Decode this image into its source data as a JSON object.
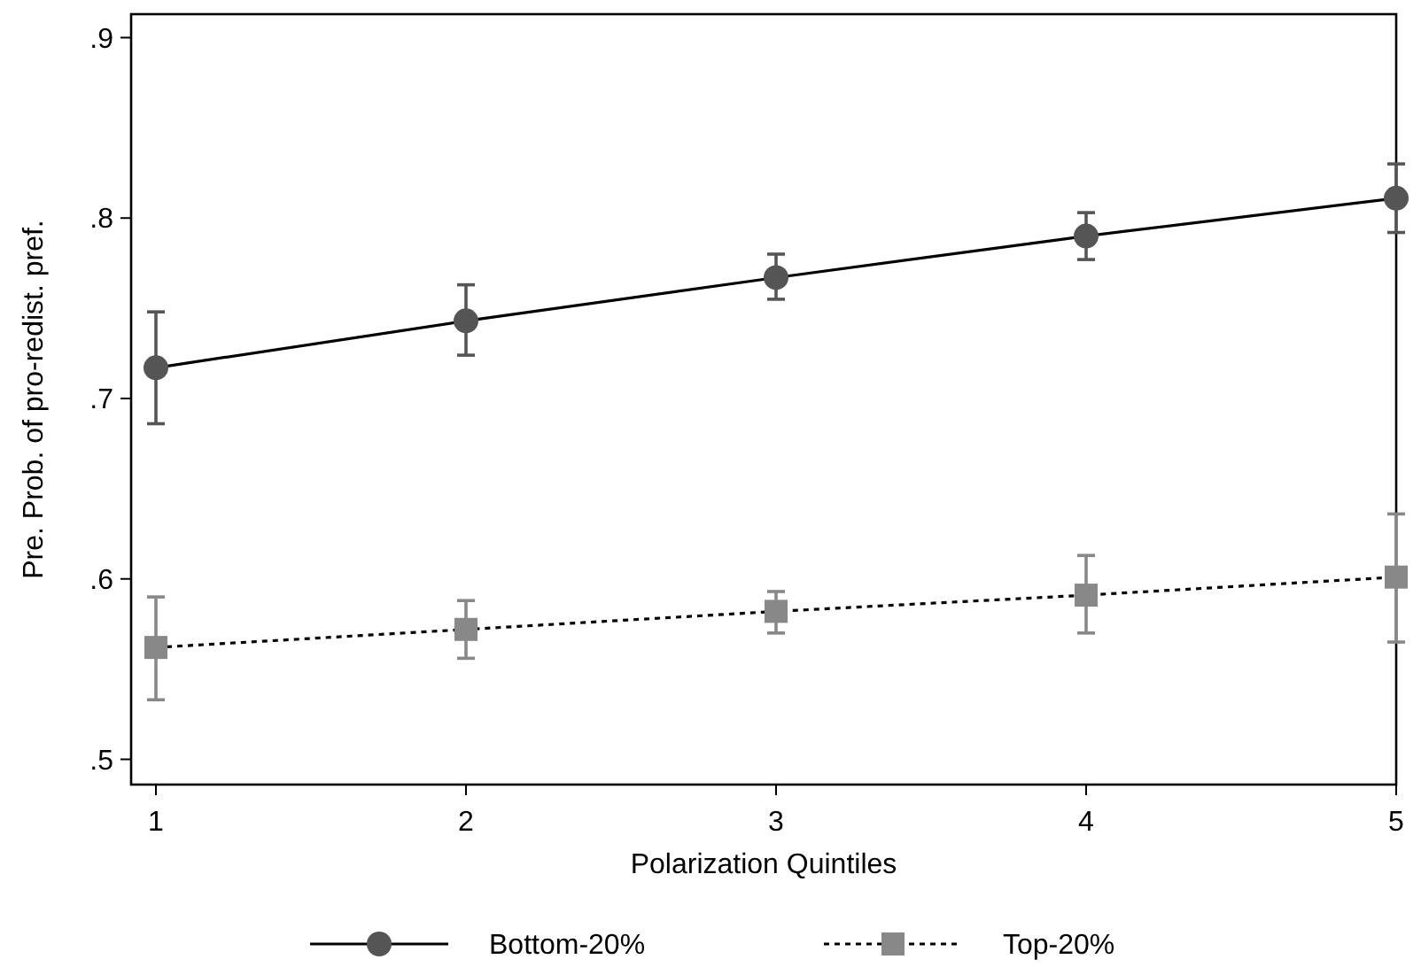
{
  "chart_data": {
    "type": "line",
    "xlabel": "Polarization Quintiles",
    "ylabel": "Pre. Prob. of pro-redist. pref.",
    "x": [
      1,
      2,
      3,
      4,
      5
    ],
    "xlim": [
      0.92,
      5
    ],
    "xticks": [
      1,
      2,
      3,
      4,
      5
    ],
    "ylim": [
      0.486,
      0.913
    ],
    "yticks": [
      {
        "value": 0.5,
        "label": ".5"
      },
      {
        "value": 0.6,
        "label": ".6"
      },
      {
        "value": 0.7,
        "label": ".7"
      },
      {
        "value": 0.8,
        "label": ".8"
      },
      {
        "value": 0.9,
        "label": ".9"
      }
    ],
    "grid": false,
    "legend": "bottom",
    "series": [
      {
        "name": "Bottom-20%",
        "color": "#555555",
        "marker": "circle",
        "line_style": "solid",
        "values": [
          0.717,
          0.743,
          0.767,
          0.79,
          0.811
        ],
        "errors": [
          [
            0.686,
            0.748
          ],
          [
            0.724,
            0.763
          ],
          [
            0.755,
            0.78
          ],
          [
            0.777,
            0.803
          ],
          [
            0.792,
            0.83
          ]
        ]
      },
      {
        "name": "Top-20%",
        "color": "#888888",
        "marker": "square",
        "line_style": "dotted",
        "values": [
          0.562,
          0.572,
          0.582,
          0.591,
          0.601
        ],
        "errors": [
          [
            0.533,
            0.59
          ],
          [
            0.556,
            0.588
          ],
          [
            0.57,
            0.593
          ],
          [
            0.57,
            0.613
          ],
          [
            0.565,
            0.636
          ]
        ]
      }
    ]
  }
}
